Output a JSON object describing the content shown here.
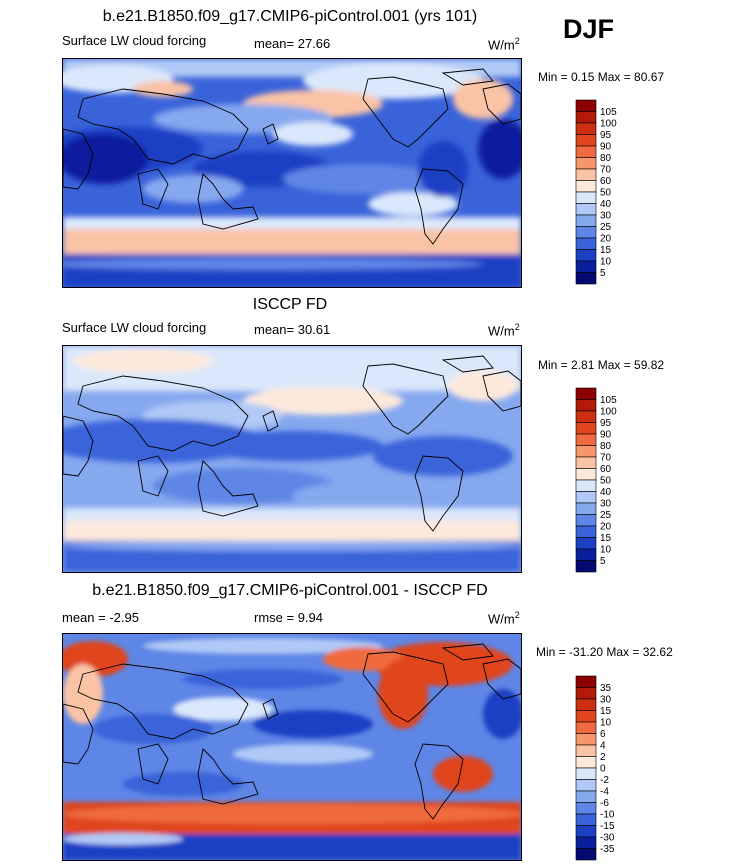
{
  "season": "DJF",
  "chart_data": [
    {
      "type": "heatmap",
      "title": "b.e21.B1850.f09_g17.CMIP6-piControl.001 (yrs 101)",
      "variable": "Surface LW cloud forcing",
      "mean_label": "mean=  27.66",
      "units_label": "W/m",
      "units_exp": "2",
      "minmax_label": "Min =   0.15 Max =  80.67",
      "min": 0.15,
      "max": 80.67,
      "mean": 27.66,
      "levels": [
        "105",
        "100",
        "95",
        "90",
        "80",
        "70",
        "60",
        "50",
        "40",
        "30",
        "25",
        "20",
        "15",
        "10",
        "5"
      ],
      "colors": [
        "#8b0000",
        "#b21a0a",
        "#cc3011",
        "#e0451e",
        "#ef6a3e",
        "#f7956b",
        "#fbc3a6",
        "#fde9dc",
        "#dbe8fb",
        "#b1c9f6",
        "#86a8ef",
        "#5e86e6",
        "#3a63da",
        "#1b40c4",
        "#0a1f9e",
        "#020a73"
      ],
      "projection": "cylindrical equidistant, Pacific-centered"
    },
    {
      "type": "heatmap",
      "title": "ISCCP FD",
      "variable": "Surface LW cloud forcing",
      "mean_label": "mean=  30.61",
      "units_label": "W/m",
      "units_exp": "2",
      "minmax_label": "Min =   2.81 Max =  59.82",
      "min": 2.81,
      "max": 59.82,
      "mean": 30.61,
      "levels": [
        "105",
        "100",
        "95",
        "90",
        "80",
        "70",
        "60",
        "50",
        "40",
        "30",
        "25",
        "20",
        "15",
        "10",
        "5"
      ],
      "colors": [
        "#8b0000",
        "#b21a0a",
        "#cc3011",
        "#e0451e",
        "#ef6a3e",
        "#f7956b",
        "#fbc3a6",
        "#fde9dc",
        "#dbe8fb",
        "#b1c9f6",
        "#86a8ef",
        "#5e86e6",
        "#3a63da",
        "#1b40c4",
        "#0a1f9e",
        "#020a73"
      ],
      "projection": "cylindrical equidistant, Pacific-centered"
    },
    {
      "type": "heatmap",
      "title": "b.e21.B1850.f09_g17.CMIP6-piControl.001 - ISCCP FD",
      "mean_label": "mean =  -2.95",
      "rmse_label": "rmse =   9.94",
      "units_label": "W/m",
      "units_exp": "2",
      "minmax_label": "Min = -31.20 Max =  32.62",
      "min": -31.2,
      "max": 32.62,
      "mean": -2.95,
      "rmse": 9.94,
      "levels": [
        "35",
        "30",
        "15",
        "10",
        "6",
        "4",
        "2",
        "0",
        "-2",
        "-4",
        "-6",
        "-10",
        "-15",
        "-30",
        "-35"
      ],
      "colors": [
        "#8b0000",
        "#b21a0a",
        "#cc3011",
        "#e0451e",
        "#ef6a3e",
        "#f7956b",
        "#fbc3a6",
        "#fde9dc",
        "#dbe8fb",
        "#b1c9f6",
        "#86a8ef",
        "#5e86e6",
        "#3a63da",
        "#1b40c4",
        "#0a1f9e",
        "#020a73"
      ],
      "projection": "cylindrical equidistant, Pacific-centered"
    }
  ]
}
